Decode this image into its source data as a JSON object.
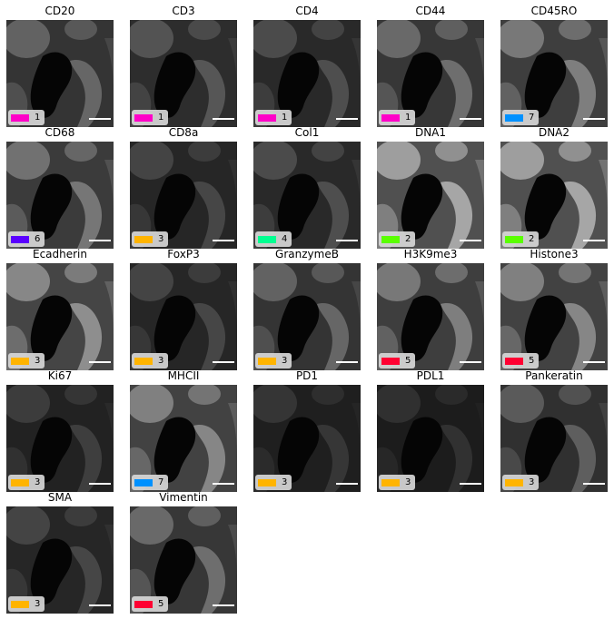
{
  "panels": [
    {
      "title": "CD20",
      "cluster": "1",
      "color": "#ff00c8",
      "level": 0.45
    },
    {
      "title": "CD3",
      "cluster": "1",
      "color": "#ff00c8",
      "level": 0.35
    },
    {
      "title": "CD4",
      "cluster": "1",
      "color": "#ff00c8",
      "level": 0.3
    },
    {
      "title": "CD44",
      "cluster": "1",
      "color": "#ff00c8",
      "level": 0.5
    },
    {
      "title": "CD45RO",
      "cluster": "7",
      "color": "#0091ff",
      "level": 0.6
    },
    {
      "title": "CD68",
      "cluster": "6",
      "color": "#5a00ff",
      "level": 0.55
    },
    {
      "title": "CD8a",
      "cluster": "3",
      "color": "#ffb400",
      "level": 0.25
    },
    {
      "title": "Col1",
      "cluster": "4",
      "color": "#00ff91",
      "level": 0.3
    },
    {
      "title": "DNA1",
      "cluster": "2",
      "color": "#5aff00",
      "level": 0.85
    },
    {
      "title": "DNA2",
      "cluster": "2",
      "color": "#5aff00",
      "level": 0.85
    },
    {
      "title": "Ecadherin",
      "cluster": "3",
      "color": "#ffb400",
      "level": 0.7
    },
    {
      "title": "FoxP3",
      "cluster": "3",
      "color": "#ffb400",
      "level": 0.25
    },
    {
      "title": "GranzymeB",
      "cluster": "3",
      "color": "#ffb400",
      "level": 0.45
    },
    {
      "title": "H3K9me3",
      "cluster": "5",
      "color": "#ff0032",
      "level": 0.6
    },
    {
      "title": "Histone3",
      "cluster": "5",
      "color": "#ff0032",
      "level": 0.65
    },
    {
      "title": "Ki67",
      "cluster": "3",
      "color": "#ffb400",
      "level": 0.2
    },
    {
      "title": "MHCII",
      "cluster": "7",
      "color": "#0091ff",
      "level": 0.65
    },
    {
      "title": "PD1",
      "cluster": "3",
      "color": "#ffb400",
      "level": 0.15
    },
    {
      "title": "PDL1",
      "cluster": "3",
      "color": "#ffb400",
      "level": 0.12
    },
    {
      "title": "Pankeratin",
      "cluster": "3",
      "color": "#ffb400",
      "level": 0.4
    },
    {
      "title": "SMA",
      "cluster": "3",
      "color": "#ffb400",
      "level": 0.25
    },
    {
      "title": "Vimentin",
      "cluster": "5",
      "color": "#ff0032",
      "level": 0.5
    }
  ]
}
